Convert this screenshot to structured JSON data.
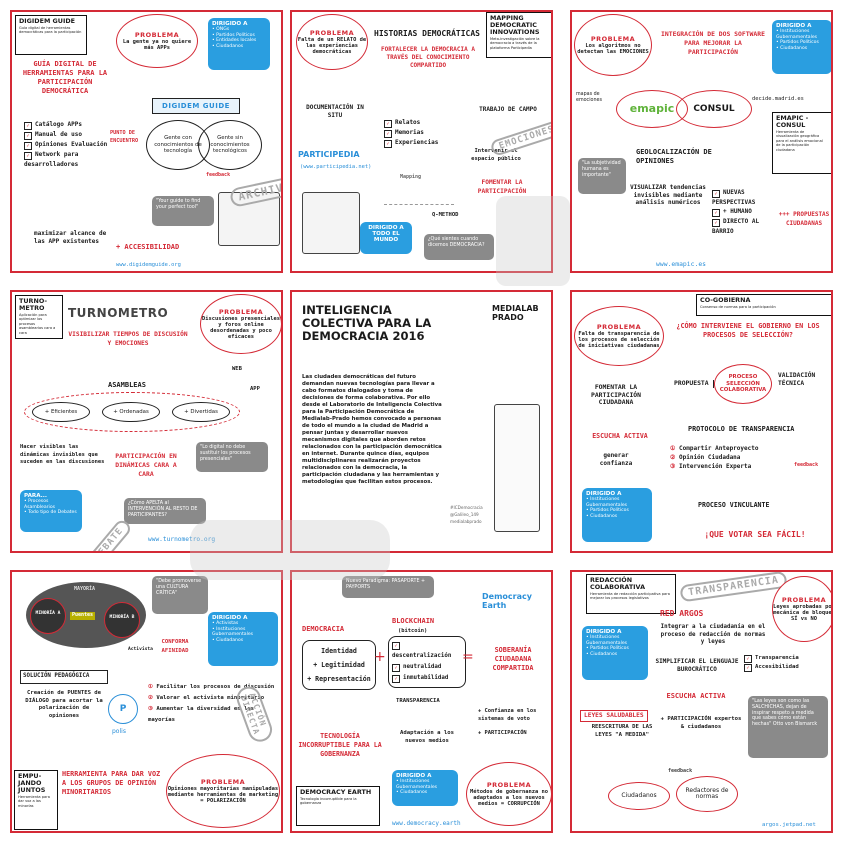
{
  "p1": {
    "tag_title": "DIGIDEM GUIDE",
    "tag_desc": "Guía digital de herramientas democráticas para la participación",
    "problema": "PROBLEMA",
    "problema_text": "La gente ya no quiere más APPs",
    "dirigido": "DIRIGIDO A",
    "dirigido_items": [
      "• ONGs",
      "• Partidos Políticos",
      "• Entidades locales",
      "• Ciudadanos"
    ],
    "heading": "GUÍA DIGITAL DE HERRAMIENTAS PARA LA PARTICIPACIÓN DEMOCRÁTICA",
    "logo": "DIGIDEM GUIDE",
    "checklist": [
      "Catálogo APPs",
      "Manual de uso",
      "Opiniones Evaluación",
      "Network para desarrolladores"
    ],
    "punto": "PUNTO DE ENCUENTRO",
    "venn_left": "Gente con conocimientos de tecnología",
    "venn_right": "Gente sin conocimientos tecnológicos",
    "feedback": "feedback",
    "quote": "\"Your guide to find your perfect tool\"",
    "maximizar": "maximizar alcance de las APP existentes",
    "accesibilidad": "+ ACCESIBILIDAD",
    "url": "www.digidemguide.org",
    "archivo": "ARCHIVO"
  },
  "p2": {
    "problema": "PROBLEMA",
    "problema_text": "Falta de un RELATO de las experiencias democráticas",
    "title": "HISTORIAS DEMOCRÁTICAS",
    "subtitle": "FORTALECER LA DEMOCRACIA A TRAVÉS DEL CONOCIMIENTO COMPARTIDO",
    "tag_title": "MAPPING DEMOCRATIC INNOVATIONS",
    "tag_desc": "Meta-investigación sobre la democracia a través de la plataforma Participedia",
    "doc": "DOCUMENTACIÓN IN SITU",
    "items": [
      "Relatos",
      "Memorias",
      "Experiencias"
    ],
    "trabajo": "TRABAJO DE CAMPO",
    "intervenir": "Intervenir el espacio público",
    "participedia": "PARTICIPEDIA",
    "participedia_url": "(www.participedia.net)",
    "mapping": "Mapping",
    "fomentar": "FOMENTAR LA PARTICIPACIÓN",
    "qmethod": "Q-METHOD",
    "dirigido": "DIRIGIDO A TODO EL MUNDO",
    "question": "¿Qué sientes cuando dicemos DEMOCRACIA?",
    "emociones": "EMOCIONES"
  },
  "p3": {
    "problema": "PROBLEMA",
    "problema_text": "Los algoritmos no detectan las EMOCIONES",
    "heading": "INTEGRACIÓN DE DOS SOFTWARE PARA MEJORAR LA PARTICIPACIÓN",
    "dirigido": "DIRIGIDO A",
    "dirigido_items": [
      "• Instituciones Gubernamentales",
      "• Partidos Políticos",
      "• Ciudadanos"
    ],
    "mapas": "mapas de emociones",
    "emapic": "emapic",
    "consul": "CONSUL",
    "decide": "decide.madrid.es",
    "tag_title": "EMAPIC - CONSUL",
    "tag_desc": "Herramienta de visualización geográfica para el análisis emocional de la participación ciudadana",
    "geo": "GEOLOCALIZACIÓN DE OPINIONES",
    "subjetividad": "\"La subjetividad humana es importante\"",
    "visualizar": "VISUALIZAR tendencias invisibles mediante análisis numéricos",
    "list": [
      "NUEVAS PERSPECTIVAS",
      "+ HUMANO",
      "DIRECTO AL BARRIO"
    ],
    "propuestas": "+++ PROPUESTAS CIUDADANAS",
    "url": "www.emapic.es"
  },
  "p4": {
    "tag_title": "TURNO-METRO",
    "tag_desc": "Aplicación para optimizar los procesos asamblearios cara a cara",
    "logo": "TURNOMETRO",
    "problema": "PROBLEMA",
    "problema_text": "Discusiones presenciales y foros online desordenadas y poco eficaces",
    "heading": "VISIBILIZAR TIEMPOS DE DISCUSIÓN Y EMOCIONES",
    "web": "WEB",
    "app": "APP",
    "asambleas": "ASAMBLEAS",
    "ovals": [
      "+ Eficientes",
      "+ Ordenadas",
      "+ Divertidas"
    ],
    "hacer": "Hacer visibles las dinámicas invisibles que suceden en las discusiones",
    "participacion": "PARTICIPACIÓN EN DINÁMICAS CARA A CARA",
    "quote": "\"Lo digital no debe sustituir los procesos presenciales\"",
    "para": "PARA...",
    "para_items": [
      "• Procesos Asamblearios",
      "• Todo tipo de Debates"
    ],
    "question": "¿Cómo APELTA al INTERVENCIÓN AL RESTO DE PARTICIPANTES?",
    "url": "www.turnometro.org",
    "debate": "DEBATE"
  },
  "p5": {
    "title": "INTELIGENCIA COLECTIVA PARA LA DEMOCRACIA 2016",
    "brand": "MEDIALAB PRADO",
    "body": "Las ciudades democráticas del futuro demandan nuevas tecnologías para llevar a cabo formatos dialogados y toma de decisiones de forma colaborativa. Por ello desde el Laboratorio de Inteligencia Colectiva para la Participación Democrática de Medialab-Prado hemos convocado a personas de todo el mundo a la ciudad de Madrid a pensar juntas y desarrollar nuevos mecanismos digitales que aborden retos relacionados con la participación democrática en internet. Durante quince días, equipos multidisciplinares realizarán proyectos relacionados con la democracia, la participación ciudadana y las herramientas y metodologías que facilitan estos procesos.",
    "social": [
      "#ICDemocracia",
      "@Galileo_149",
      "medialabprado"
    ]
  },
  "p6": {
    "tag_title": "CO-GOBIERNA",
    "tag_desc": "Consenso de normas para la participación",
    "problema": "PROBLEMA",
    "problema_text": "Falta de transparencia de los procesos de selección de iniciativas ciudadanas",
    "question": "¿CÓMO INTERVIENE EL GOBIERNO EN LOS PROCESOS DE SELECCIÓN?",
    "propuesta": "PROPUESTA",
    "proceso": "PROCESO SELECCIÓN COLABORATIVA",
    "validacion": "VALIDACIÓN TÉCNICA",
    "fomentar": "FOMENTAR LA PARTICIPACIÓN CIUDADANA",
    "protocolo": "PROTOCOLO DE TRANSPARENCIA",
    "steps": [
      "Compartir Anteproyecto",
      "Opinión Ciudadana",
      "Intervención Experta"
    ],
    "feedback": "feedback",
    "escucha": "ESCUCHA ACTIVA",
    "generar": "generar confianza",
    "dirigido": "DIRIGIDO A",
    "dirigido_items": [
      "• Instituciones Gubernamentales",
      "• Partidos Políticos",
      "• Ciudadanos"
    ],
    "vinculante": "PROCESO VINCULANTE",
    "final": "¡QUE VOTAR SEA FÁCIL!"
  },
  "p7": {
    "mayoria": "MAYORÍA",
    "minoria_a": "MINORÍA A",
    "minoria_b": "MINORÍA B",
    "puentes": "Puentes",
    "quote": "\"Debe promoverse una CULTURA CRÍTICA\"",
    "activista": "Activista",
    "conforma": "CONFORMA AFINIDAD",
    "dirigido": "DIRIGIDO A",
    "dirigido_items": [
      "• Activistas",
      "• Instituciones Gubernamentales",
      "• Ciudadanos"
    ],
    "solucion": "SOLUCIÓN PEDAGÓGICA",
    "creacion": "Creación de PUENTES de DIÁLOGO para acortar la polarización de opiniones",
    "polis": "polis",
    "steps": [
      "Facilitar los procesos de discusión",
      "Valorar el activista minoritario",
      "Aumentar la diversidad en las mayorías"
    ],
    "tag_title": "EMPU-JANDO JUNTOS",
    "tag_desc": "Herramienta para dar voz a las minorías",
    "heading": "HERRAMIENTA PARA DAR VOZ A LOS GRUPOS DE OPINIÓN MINORITARIOS",
    "problema": "PROBLEMA",
    "problema_text": "Opiniones mayoritarias manipuladas mediante herramientas de marketing = POLARIZACIÓN",
    "accion": "ACCIÓN DIRECTA"
  },
  "p8": {
    "nuevo": "Nuevo Paradigma: PASAPORTE + PAYPORTS",
    "democracia": "DEMOCRACIA",
    "demo_items": [
      "Identidad",
      "+ Legitimidad",
      "+ Representación"
    ],
    "blockchain": "BLOCKCHAIN",
    "bitcoin": "(bitcoin)",
    "block_items": [
      "descentralización",
      "neutralidad",
      "inmutabilidad"
    ],
    "logo": "Democracy Earth",
    "soberania": "SOBERANÍA CIUDADANA COMPARTIDA",
    "transparencia": "TRANSPARENCIA",
    "confianza": "+ Confianza en los sistemas de voto",
    "participacion": "+ PARTICIPACIÓN",
    "tecnologia": "TECNOLOGÍA INCORRUPTIBLE PARA LA GOBERNANZA",
    "adaptacion": "Adaptación a los nuevos medios",
    "dirigido": "DIRIGIDO A",
    "dirigido_items": [
      "• Instituciones Gubernamentales",
      "• Ciudadanos"
    ],
    "problema": "PROBLEMA",
    "problema_text": "Métodos de gobernanza no adaptados a los nuevos medios = CORRUPCIÓN",
    "tag_title": "DEMOCRACY EARTH",
    "tag_desc": "Tecnología incorruptible para la gobernanza",
    "url": "www.democracy.earth"
  },
  "p9": {
    "tag_title": "REDACCIÓN COLABORATIVA",
    "tag_desc": "Herramienta de redacción participativa para mejorar los procesos legislativos",
    "transparencia_stamp": "TRANSPARENCIA",
    "red": "RED ARGOS",
    "integrar": "Integrar a la ciudadanía en el proceso de redacción de normas y leyes",
    "problema": "PROBLEMA",
    "problema_text": "Leyes aprobadas por mecánica de bloques SÍ vs NO",
    "dirigido": "DIRIGIDO A",
    "dirigido_items": [
      "• Instituciones Gubernamentales",
      "• Partidos Políticos",
      "• Ciudadanos"
    ],
    "simplificar": "SIMPLIFICAR EL LENGUAJE BUROCRÁTICO",
    "list": [
      "Transparencia",
      "Accesibilidad"
    ],
    "escucha": "ESCUCHA ACTIVA",
    "participacion": "+ PARTICIPACIÓN expertos & ciudadanos",
    "leyes": "LEYES SALUDABLES",
    "reescritura": "REESCRITURA DE LAS LEYES \"A MEDIDA\"",
    "quote": "\"Las leyes son como las SALCHICHAS, dejan de inspirar respeto a medida que sabes cómo están hechas\" Otto von Bismarck",
    "feedback": "feedback",
    "cycle": [
      "Ciudadanos",
      "Redactores de normas"
    ],
    "url": "argos.jetpad.net"
  }
}
